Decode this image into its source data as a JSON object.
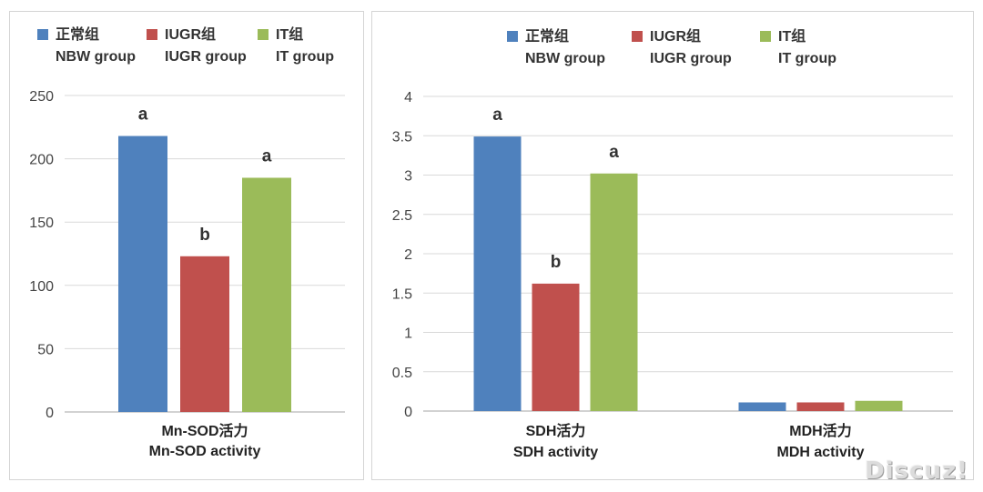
{
  "chart_data": [
    {
      "type": "bar",
      "categories": [
        "Mn-SOD活力\nMn-SOD activity"
      ],
      "series": [
        {
          "name": "正常组\nNBW group",
          "color": "#4F81BD",
          "values": [
            218
          ],
          "labels": [
            "a"
          ]
        },
        {
          "name": "IUGR组\nIUGR group",
          "color": "#C0504D",
          "values": [
            123
          ],
          "labels": [
            "b"
          ]
        },
        {
          "name": "IT组\nIT group",
          "color": "#9BBB59",
          "values": [
            185
          ],
          "labels": [
            "a"
          ]
        }
      ],
      "ylim": [
        0,
        250
      ],
      "yticks": [
        "0",
        "50",
        "100",
        "150",
        "200",
        "250"
      ],
      "grid": true,
      "legend": "top"
    },
    {
      "type": "bar",
      "categories": [
        "SDH活力\nSDH activity",
        "MDH活力\nMDH activity"
      ],
      "series": [
        {
          "name": "正常组\nNBW group",
          "color": "#4F81BD",
          "values": [
            3.49,
            0.11
          ],
          "labels": [
            "a",
            ""
          ]
        },
        {
          "name": "IUGR组\nIUGR group",
          "color": "#C0504D",
          "values": [
            1.62,
            0.11
          ],
          "labels": [
            "b",
            ""
          ]
        },
        {
          "name": "IT组\nIT group",
          "color": "#9BBB59",
          "values": [
            3.02,
            0.13
          ],
          "labels": [
            "a",
            ""
          ]
        }
      ],
      "ylim": [
        0,
        4
      ],
      "yticks": [
        "0",
        "0.5",
        "1",
        "1.5",
        "2",
        "2.5",
        "3",
        "3.5",
        "4"
      ],
      "grid": true,
      "legend": "top"
    }
  ],
  "watermark": "Discuz!"
}
